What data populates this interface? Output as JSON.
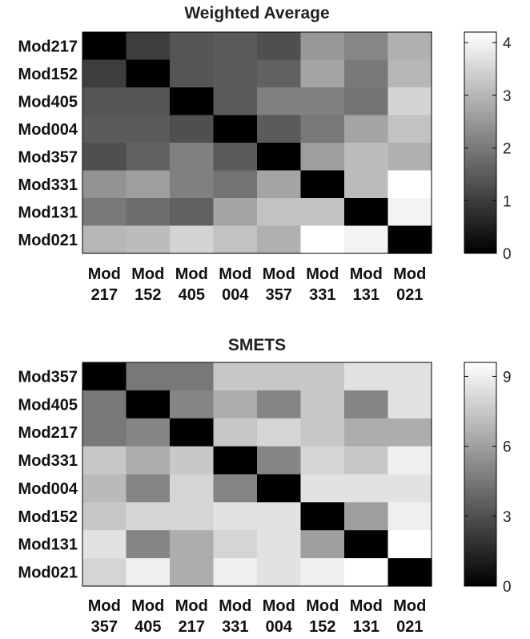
{
  "chart_data": [
    {
      "type": "heatmap",
      "title": "Weighted Average",
      "rows": [
        "Mod217",
        "Mod152",
        "Mod405",
        "Mod004",
        "Mod357",
        "Mod331",
        "Mod131",
        "Mod021"
      ],
      "cols_line1": [
        "Mod",
        "Mod",
        "Mod",
        "Mod",
        "Mod",
        "Mod",
        "Mod",
        "Mod"
      ],
      "cols_line2": [
        "217",
        "152",
        "405",
        "004",
        "357",
        "331",
        "131",
        "021"
      ],
      "values": [
        [
          0.0,
          1.0,
          1.4,
          1.5,
          1.3,
          2.5,
          2.2,
          2.9
        ],
        [
          1.0,
          0.0,
          1.4,
          1.5,
          1.6,
          2.7,
          2.0,
          3.0
        ],
        [
          1.4,
          1.4,
          0.0,
          1.5,
          2.1,
          2.1,
          1.9,
          3.5
        ],
        [
          1.5,
          1.5,
          1.3,
          0.0,
          1.5,
          2.0,
          2.7,
          3.2
        ],
        [
          1.3,
          1.6,
          2.1,
          1.5,
          0.0,
          2.6,
          3.1,
          2.9
        ],
        [
          2.4,
          2.6,
          2.1,
          1.9,
          2.7,
          0.0,
          3.1,
          4.2
        ],
        [
          2.0,
          1.8,
          1.6,
          2.7,
          3.2,
          3.2,
          0.0,
          4.0
        ],
        [
          3.0,
          3.1,
          3.5,
          3.2,
          2.9,
          4.2,
          4.0,
          0.0
        ]
      ],
      "colorbar": {
        "min": 0,
        "max": 4.2,
        "ticks": [
          0,
          1,
          2,
          3,
          4
        ]
      }
    },
    {
      "type": "heatmap",
      "title": "SMETS",
      "rows": [
        "Mod357",
        "Mod405",
        "Mod217",
        "Mod331",
        "Mod004",
        "Mod152",
        "Mod131",
        "Mod021"
      ],
      "cols_line1": [
        "Mod",
        "Mod",
        "Mod",
        "Mod",
        "Mod",
        "Mod",
        "Mod",
        "Mod"
      ],
      "cols_line2": [
        "357",
        "405",
        "217",
        "331",
        "004",
        "152",
        "131",
        "021"
      ],
      "values": [
        [
          0.0,
          4.5,
          4.5,
          7.5,
          7.5,
          7.5,
          8.5,
          8.5
        ],
        [
          4.5,
          0.0,
          5.0,
          6.5,
          5.0,
          7.5,
          5.0,
          8.5
        ],
        [
          4.5,
          5.0,
          0.0,
          7.5,
          8.0,
          7.5,
          6.5,
          6.5
        ],
        [
          7.5,
          6.5,
          7.5,
          0.0,
          5.0,
          8.0,
          7.5,
          9.0
        ],
        [
          7.0,
          5.0,
          8.0,
          5.0,
          0.0,
          8.5,
          8.5,
          8.5
        ],
        [
          7.5,
          8.0,
          8.0,
          8.5,
          8.5,
          0.0,
          6.0,
          9.0
        ],
        [
          8.5,
          5.0,
          6.5,
          8.0,
          8.5,
          6.0,
          0.0,
          9.6
        ],
        [
          8.0,
          9.0,
          6.5,
          9.0,
          8.5,
          9.0,
          9.6,
          0.0
        ]
      ],
      "colorbar": {
        "min": 0,
        "max": 9.6,
        "ticks": [
          0,
          3,
          6,
          9
        ]
      }
    }
  ]
}
